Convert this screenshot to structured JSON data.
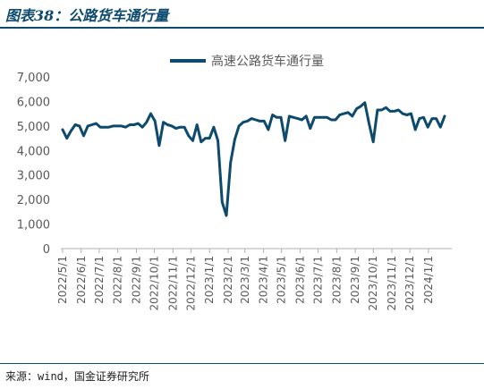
{
  "header": {
    "figure_title": "图表38：公路货车通行量"
  },
  "footer": {
    "source": "来源：wind，国金证券研究所"
  },
  "colors": {
    "accent": "#0d4a6e",
    "axis": "#b0b0b0",
    "text": "#595959"
  },
  "chart_data": {
    "type": "line",
    "title": "",
    "xlabel": "",
    "ylabel": "",
    "ylim": [
      0,
      7000
    ],
    "yticks": [
      0,
      1000,
      2000,
      3000,
      4000,
      5000,
      6000,
      7000
    ],
    "ytick_labels": [
      "0",
      "1,000",
      "2,000",
      "3,000",
      "4,000",
      "5,000",
      "6,000",
      "7,000"
    ],
    "xlim": [
      "2022-05-01",
      "2024-01-28"
    ],
    "xticks": [
      "2022-05-01",
      "2022-06-01",
      "2022-07-01",
      "2022-08-01",
      "2022-09-01",
      "2022-10-01",
      "2022-11-01",
      "2022-12-01",
      "2023-01-01",
      "2023-02-01",
      "2023-03-01",
      "2023-04-01",
      "2023-05-01",
      "2023-06-01",
      "2023-07-01",
      "2023-08-01",
      "2023-09-01",
      "2023-10-01",
      "2023-11-01",
      "2023-12-01",
      "2024-01-01"
    ],
    "xtick_labels": [
      "2022/5/1",
      "2022/6/1",
      "2022/7/1",
      "2022/8/1",
      "2022/9/1",
      "2022/10/1",
      "2022/11/1",
      "2022/12/1",
      "2023/1/1",
      "2023/2/1",
      "2023/3/1",
      "2023/4/1",
      "2023/5/1",
      "2023/6/1",
      "2023/7/1",
      "2023/8/1",
      "2023/9/1",
      "2023/10/1",
      "2023/11/1",
      "2023/12/1",
      "2024/1/1"
    ],
    "grid": false,
    "legend": "top-center",
    "series": [
      {
        "name": "高速公路货车通行量",
        "color": "#0d4a6e",
        "points": [
          [
            "2022-05-01",
            4850
          ],
          [
            "2022-05-08",
            4500
          ],
          [
            "2022-05-15",
            4800
          ],
          [
            "2022-05-22",
            5050
          ],
          [
            "2022-05-29",
            5000
          ],
          [
            "2022-06-05",
            4600
          ],
          [
            "2022-06-12",
            5000
          ],
          [
            "2022-06-19",
            5050
          ],
          [
            "2022-06-26",
            5100
          ],
          [
            "2022-07-03",
            4950
          ],
          [
            "2022-07-10",
            4950
          ],
          [
            "2022-07-17",
            4950
          ],
          [
            "2022-07-24",
            5000
          ],
          [
            "2022-07-31",
            5000
          ],
          [
            "2022-08-07",
            5000
          ],
          [
            "2022-08-14",
            4950
          ],
          [
            "2022-08-21",
            5050
          ],
          [
            "2022-08-28",
            5050
          ],
          [
            "2022-09-04",
            5100
          ],
          [
            "2022-09-11",
            4950
          ],
          [
            "2022-09-18",
            5150
          ],
          [
            "2022-09-25",
            5500
          ],
          [
            "2022-10-02",
            5200
          ],
          [
            "2022-10-09",
            4200
          ],
          [
            "2022-10-16",
            5150
          ],
          [
            "2022-10-23",
            5050
          ],
          [
            "2022-10-30",
            5000
          ],
          [
            "2022-11-06",
            4900
          ],
          [
            "2022-11-13",
            4950
          ],
          [
            "2022-11-20",
            4950
          ],
          [
            "2022-11-27",
            4600
          ],
          [
            "2022-12-04",
            4400
          ],
          [
            "2022-12-11",
            5050
          ],
          [
            "2022-12-18",
            4350
          ],
          [
            "2022-12-25",
            4500
          ],
          [
            "2023-01-01",
            4500
          ],
          [
            "2023-01-08",
            4950
          ],
          [
            "2023-01-15",
            4400
          ],
          [
            "2023-01-22",
            1900
          ],
          [
            "2023-01-29",
            1350
          ],
          [
            "2023-02-05",
            3500
          ],
          [
            "2023-02-12",
            4450
          ],
          [
            "2023-02-19",
            5000
          ],
          [
            "2023-02-26",
            5150
          ],
          [
            "2023-03-05",
            5200
          ],
          [
            "2023-03-12",
            5300
          ],
          [
            "2023-03-19",
            5250
          ],
          [
            "2023-03-26",
            5200
          ],
          [
            "2023-04-02",
            5200
          ],
          [
            "2023-04-09",
            4850
          ],
          [
            "2023-04-16",
            5450
          ],
          [
            "2023-04-23",
            5350
          ],
          [
            "2023-04-30",
            5350
          ],
          [
            "2023-05-07",
            4400
          ],
          [
            "2023-05-14",
            5400
          ],
          [
            "2023-05-21",
            5350
          ],
          [
            "2023-05-28",
            5300
          ],
          [
            "2023-06-04",
            5250
          ],
          [
            "2023-06-11",
            5400
          ],
          [
            "2023-06-18",
            4900
          ],
          [
            "2023-06-25",
            5350
          ],
          [
            "2023-07-02",
            5350
          ],
          [
            "2023-07-09",
            5350
          ],
          [
            "2023-07-16",
            5350
          ],
          [
            "2023-07-23",
            5250
          ],
          [
            "2023-07-30",
            5250
          ],
          [
            "2023-08-06",
            5450
          ],
          [
            "2023-08-13",
            5500
          ],
          [
            "2023-08-20",
            5550
          ],
          [
            "2023-08-27",
            5400
          ],
          [
            "2023-09-03",
            5700
          ],
          [
            "2023-09-10",
            5800
          ],
          [
            "2023-09-17",
            5950
          ],
          [
            "2023-09-24",
            5100
          ],
          [
            "2023-10-01",
            4350
          ],
          [
            "2023-10-08",
            5650
          ],
          [
            "2023-10-15",
            5650
          ],
          [
            "2023-10-22",
            5750
          ],
          [
            "2023-10-29",
            5600
          ],
          [
            "2023-11-05",
            5600
          ],
          [
            "2023-11-12",
            5650
          ],
          [
            "2023-11-19",
            5500
          ],
          [
            "2023-11-26",
            5450
          ],
          [
            "2023-12-03",
            5500
          ],
          [
            "2023-12-10",
            4850
          ],
          [
            "2023-12-17",
            5300
          ],
          [
            "2023-12-24",
            5350
          ],
          [
            "2023-12-31",
            4950
          ],
          [
            "2024-01-07",
            5300
          ],
          [
            "2024-01-14",
            5300
          ],
          [
            "2024-01-21",
            4950
          ],
          [
            "2024-01-28",
            5400
          ]
        ]
      }
    ]
  }
}
